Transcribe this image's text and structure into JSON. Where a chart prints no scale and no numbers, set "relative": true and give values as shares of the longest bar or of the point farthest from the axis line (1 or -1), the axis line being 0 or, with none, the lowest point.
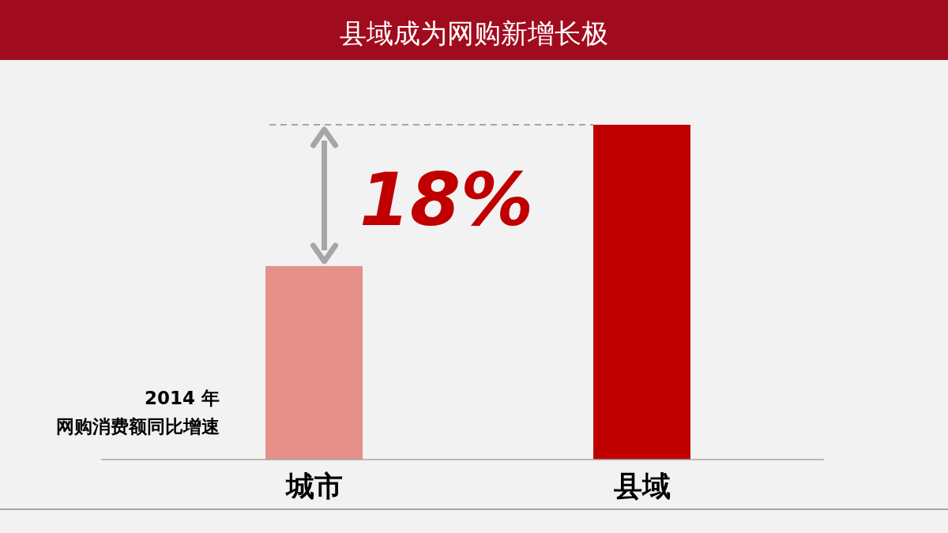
{
  "chart_data": {
    "type": "bar",
    "title": "县域成为网购新增长极",
    "ylabel": "2014 年网购消费额同比增速",
    "categories": [
      "城市",
      "县域"
    ],
    "values": [
      0.578,
      1
    ],
    "colors": [
      "#e6908a",
      "#c00000"
    ],
    "relative": true,
    "ref_lines": [
      {
        "axis": "y",
        "value": 1,
        "color": "#a6a6a6",
        "line_style": "dashed"
      }
    ],
    "annotations": [
      "18%"
    ]
  }
}
